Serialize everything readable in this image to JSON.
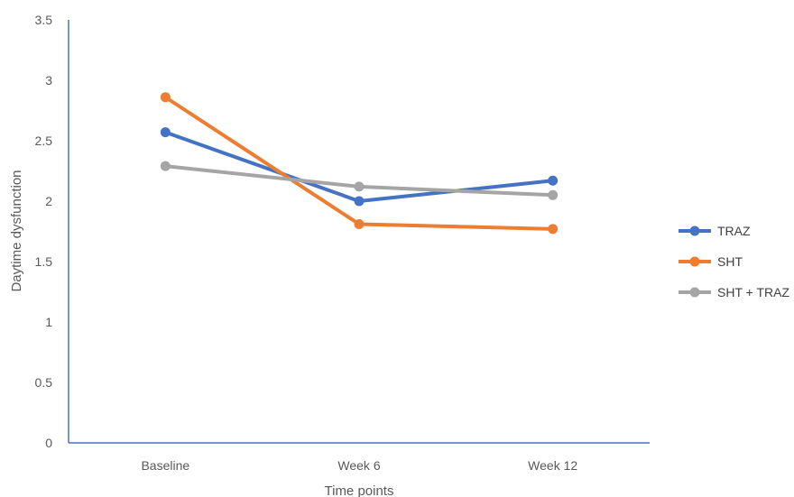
{
  "chart_data": {
    "type": "line",
    "title": "",
    "xlabel": "Time points",
    "ylabel": "Daytime dysfunction",
    "categories": [
      "Baseline",
      "Week 6",
      "Week 12"
    ],
    "ylim": [
      0,
      3.5
    ],
    "yticks": [
      "0",
      "0.5",
      "1",
      "1.5",
      "2",
      "2.5",
      "3",
      "3.5"
    ],
    "ytick_values": [
      0,
      0.5,
      1,
      1.5,
      2,
      2.5,
      3,
      3.5
    ],
    "grid": false,
    "legend_position": "right",
    "series": [
      {
        "name": "TRAZ",
        "color": "#4472C4",
        "values": [
          2.57,
          2.0,
          2.17
        ]
      },
      {
        "name": "SHT",
        "color": "#ED7D31",
        "values": [
          2.86,
          1.81,
          1.77
        ]
      },
      {
        "name": "SHT + TRAZ",
        "color": "#A5A5A5",
        "values": [
          2.29,
          2.12,
          2.05
        ]
      }
    ]
  }
}
